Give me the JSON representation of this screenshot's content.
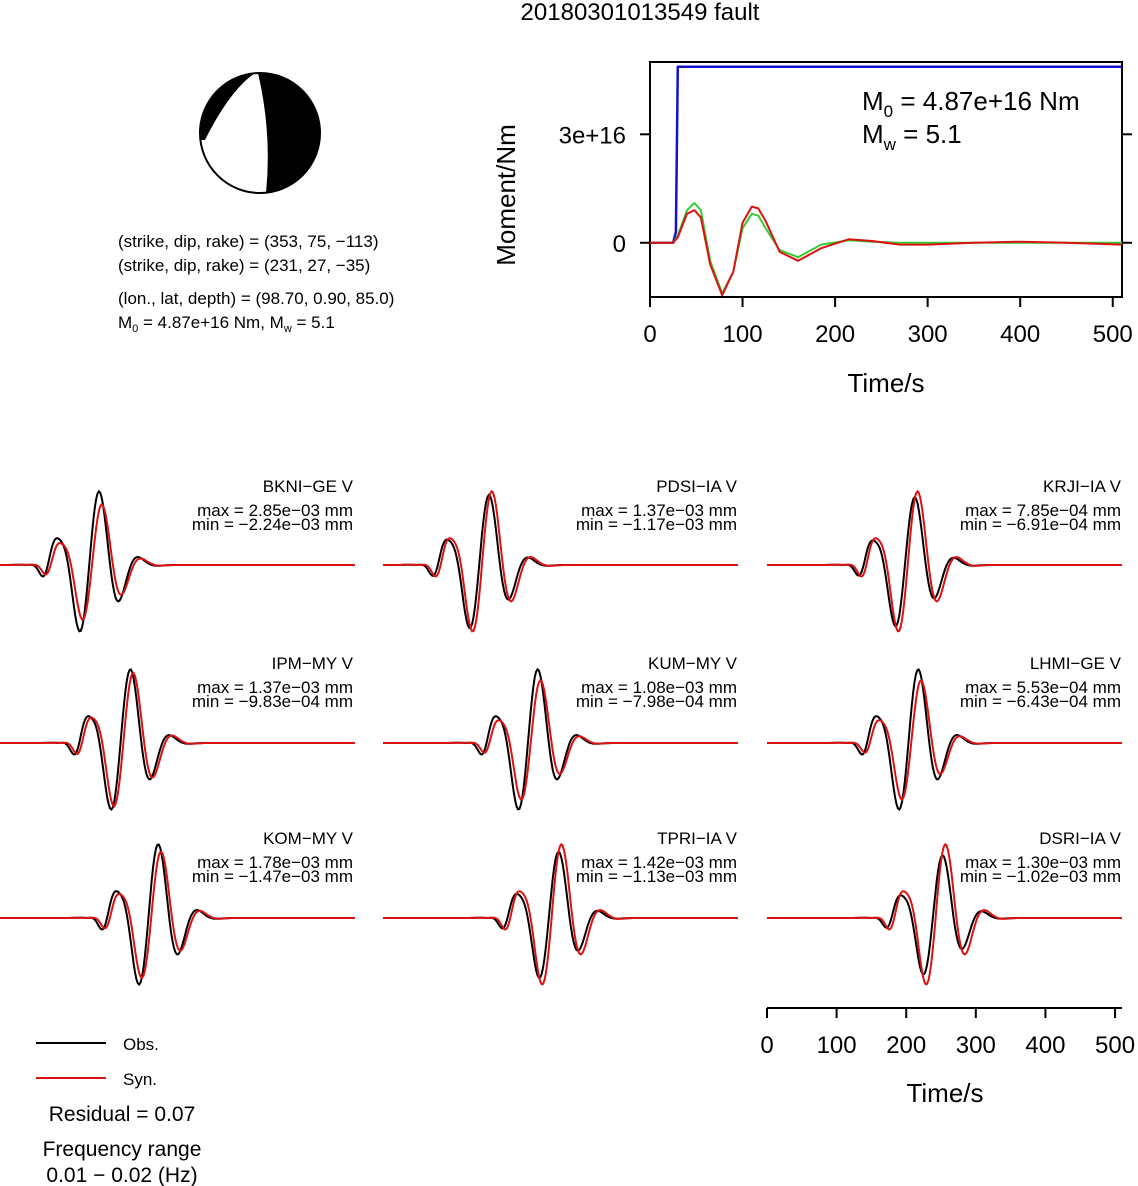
{
  "page_title": "20180301013549 fault",
  "colors": {
    "obs": "#000000",
    "syn": "#dd1111",
    "moment_step": "#1111cc",
    "moment_green": "#33cc33",
    "beachball": "#000000"
  },
  "source": {
    "line1": "(strike, dip, rake) = (353, 75, −113)",
    "line2": "(strike, dip, rake) = (231, 27, −35)",
    "line3": "(lon., lat, depth) = (98.70, 0.90, 85.0)",
    "m0_label": "M",
    "m0_sub": "0",
    "m0_value": " = 4.87e+16 Nm, M",
    "mw_sub": "w",
    "mw_value": " = 5.1"
  },
  "moment_panel": {
    "ylabel": "Moment/Nm",
    "xlabel": "Time/s",
    "annot_m0_main": "M",
    "annot_m0_sub": "0",
    "annot_m0_value": " = 4.87e+16 Nm",
    "annot_mw_main": "M",
    "annot_mw_sub": "w",
    "annot_mw_value": " = 5.1"
  },
  "waveform_axis": {
    "xlabel": "Time/s"
  },
  "legend": {
    "obs_label": "Obs.",
    "syn_label": "Syn.",
    "residual": "Residual = 0.07",
    "freq_title": "Frequency range",
    "freq_value": "0.01 − 0.02 (Hz)"
  },
  "chart_data": [
    {
      "type": "line",
      "name": "moment_function",
      "xlabel": "Time/s",
      "ylabel": "Moment/Nm",
      "xlim": [
        0,
        510
      ],
      "ylim": [
        -1.5e+16,
        5e+16
      ],
      "xticks": [
        0,
        100,
        200,
        300,
        400,
        500
      ],
      "yticks": [
        0,
        3e+16
      ],
      "ytick_labels": [
        "0",
        "3e+16"
      ],
      "series": [
        {
          "color": "#1111cc",
          "x": [
            0,
            25,
            28,
            30,
            510
          ],
          "values": [
            0,
            0,
            3000000000000000.0,
            4.87e+16,
            4.87e+16
          ]
        },
        {
          "color": "#33cc33",
          "x": [
            0,
            25,
            30,
            40,
            48,
            55,
            65,
            78,
            90,
            100,
            110,
            117,
            125,
            140,
            160,
            185,
            215,
            240,
            270,
            300,
            350,
            400,
            450,
            510
          ],
          "values": [
            0,
            0,
            2000000000000000.0,
            9000000000000000.0,
            1.1e+16,
            9000000000000000.0,
            -5000000000000000.0,
            -1.4e+16,
            -8000000000000000.0,
            4000000000000000.0,
            8000000000000000.0,
            7500000000000000.0,
            4000000000000000.0,
            -2000000000000000.0,
            -4000000000000000.0,
            -500000000000000.0,
            700000000000000.0,
            300000000000000.0,
            0,
            0,
            0,
            0,
            0,
            0
          ]
        },
        {
          "color": "#dd1111",
          "x": [
            0,
            25,
            30,
            40,
            48,
            55,
            65,
            78,
            90,
            100,
            110,
            117,
            125,
            140,
            160,
            185,
            215,
            240,
            270,
            300,
            350,
            400,
            450,
            510
          ],
          "values": [
            0,
            0,
            1500000000000000.0,
            8000000000000000.0,
            9000000000000000.0,
            7000000000000000.0,
            -6000000000000000.0,
            -1.45e+16,
            -8000000000000000.0,
            5500000000000000.0,
            1e+16,
            9500000000000000.0,
            6000000000000000.0,
            -2500000000000000.0,
            -5000000000000000.0,
            -1500000000000000.0,
            1000000000000000.0,
            500000000000000.0,
            -500000000000000.0,
            -500000000000000.0,
            0,
            300000000000000.0,
            0,
            -500000000000000.0
          ]
        }
      ]
    },
    {
      "type": "line",
      "name": "waveforms",
      "xlabel": "Time/s",
      "xlim": [
        0,
        510
      ],
      "xticks": [
        0,
        100,
        200,
        300,
        400,
        500
      ],
      "stations": [
        {
          "name": "BKNI−GE V",
          "max": "max = 2.85e−03 mm",
          "min": "min = −2.24e−03 mm",
          "center": 130,
          "amp": 1.0,
          "obs_scale": 1.0,
          "syn_scale": 0.82
        },
        {
          "name": "PDSI−IA V",
          "max": "max = 1.37e−03 mm",
          "min": "min = −1.17e−03 mm",
          "center": 140,
          "amp": 1.0,
          "obs_scale": 0.95,
          "syn_scale": 1.0
        },
        {
          "name": "KRJI−IA V",
          "max": "max = 7.85e−04 mm",
          "min": "min = −6.91e−04 mm",
          "center": 200,
          "amp": 1.0,
          "obs_scale": 0.92,
          "syn_scale": 1.0
        },
        {
          "name": "IPM−MY V",
          "max": "max = 1.37e−03 mm",
          "min": "min = −9.83e−04 mm",
          "center": 175,
          "amp": 1.0,
          "obs_scale": 1.0,
          "syn_scale": 0.95
        },
        {
          "name": "KUM−MY V",
          "max": "max = 1.08e−03 mm",
          "min": "min = −7.98e−04 mm",
          "center": 210,
          "amp": 1.0,
          "obs_scale": 1.0,
          "syn_scale": 0.85
        },
        {
          "name": "LHMI−GE V",
          "max": "max = 5.53e−04 mm",
          "min": "min = −6.43e−04 mm",
          "center": 205,
          "amp": 1.0,
          "obs_scale": 1.0,
          "syn_scale": 0.85
        },
        {
          "name": "KOM−MY V",
          "max": "max = 1.78e−03 mm",
          "min": "min = −1.47e−03 mm",
          "center": 215,
          "amp": 1.0,
          "obs_scale": 1.0,
          "syn_scale": 0.9
        },
        {
          "name": "TPRI−IA V",
          "max": "max = 1.42e−03 mm",
          "min": "min = −1.13e−03 mm",
          "center": 240,
          "amp": 1.0,
          "obs_scale": 0.9,
          "syn_scale": 1.0
        },
        {
          "name": "DSRI−IA V",
          "max": "max = 1.30e−03 mm",
          "min": "min = −1.02e−03 mm",
          "center": 240,
          "amp": 1.0,
          "obs_scale": 0.85,
          "syn_scale": 1.0
        }
      ]
    }
  ]
}
